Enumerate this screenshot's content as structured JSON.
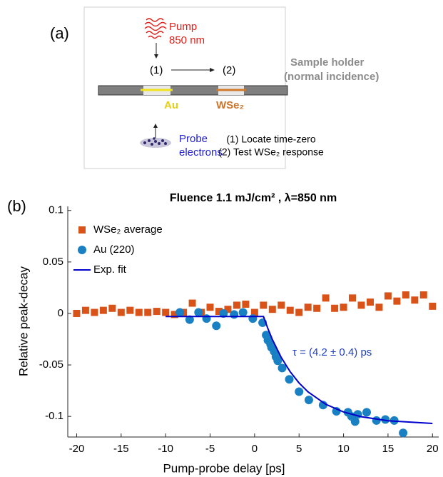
{
  "diagram": {
    "panel_label": "(a)",
    "pump": "Pump",
    "pump_wavelength": "850 nm",
    "step1": "(1)",
    "step2": "(2)",
    "holder": "Sample holder",
    "holder_note": "(normal incidence)",
    "au": "Au",
    "wse2": "WSe₂",
    "probe": "Probe",
    "probe_2": "electrons",
    "note1": "(1) Locate time-zero",
    "note2": "(2) Test WSe₂ response"
  },
  "chart_data": {
    "type": "scatter",
    "panel_label": "(b)",
    "title": "Fluence 1.1 mJ/cm² , λ=850 nm",
    "x_label": "Pump-probe delay [ps]",
    "y_label": "Relative peak-decay",
    "annotation": "τ = (4.2 ± 0.4) ps",
    "xlim": [
      -21,
      20.7
    ],
    "ylim": [
      -0.12,
      0.104
    ],
    "xticks": [
      -20,
      -15,
      -10,
      -5,
      0,
      5,
      10,
      15,
      20
    ],
    "yticks": [
      0.1,
      0.05,
      0,
      -0.05,
      -0.1
    ],
    "legend": "upper left",
    "series": [
      {
        "name": "WSe₂ average",
        "color": "#d95319",
        "marker": "square",
        "x": [
          -20,
          -19,
          -18,
          -17,
          -16,
          -15,
          -14,
          -13,
          -12,
          -11,
          -10,
          -9,
          -8,
          -7,
          -6,
          -5,
          -4,
          -3,
          -2,
          -1,
          0,
          1,
          2,
          3,
          4,
          5,
          6,
          7,
          8,
          9,
          10,
          11,
          12,
          13,
          14,
          15,
          16,
          17,
          18,
          19,
          20
        ],
        "values": [
          0,
          0.003,
          0.001,
          0.003,
          0.005,
          0.001,
          0.003,
          0.001,
          0.001,
          0.002,
          0.001,
          -0.001,
          0.001,
          0.01,
          0.001,
          0.006,
          0.002,
          0.004,
          0.008,
          0.009,
          0.001,
          0.008,
          0.004,
          0.008,
          0.003,
          0.001,
          0.006,
          0.005,
          0.015,
          0.005,
          0.006,
          0.015,
          0.008,
          0.011,
          0.006,
          0.017,
          0.012,
          0.018,
          0.013,
          0.018,
          0.007
        ]
      },
      {
        "name": "Au (220)",
        "color": "#1a80c4",
        "marker": "circle",
        "x": [
          -8.4,
          -7.3,
          -6.3,
          -5.4,
          -4.3,
          -3.5,
          -2.3,
          -1.3,
          -0.2,
          0.9,
          1.3,
          1.5,
          1.8,
          1.9,
          2.2,
          2.4,
          2.6,
          3.1,
          3.9,
          5.0,
          6.1,
          7.7,
          9.2,
          10.5,
          10.9,
          11.3,
          11.6,
          12.6,
          13.7,
          14.7,
          15.7,
          16.7
        ],
        "values": [
          0.001,
          -0.006,
          0.001,
          -0.005,
          -0.012,
          0,
          -0.001,
          0.001,
          -0.005,
          -0.009,
          -0.021,
          -0.026,
          -0.03,
          -0.033,
          -0.037,
          -0.042,
          -0.046,
          -0.053,
          -0.064,
          -0.076,
          -0.084,
          -0.089,
          -0.095,
          -0.096,
          -0.1,
          -0.105,
          -0.098,
          -0.096,
          -0.104,
          -0.103,
          -0.104,
          -0.116
        ]
      },
      {
        "name": "Exp. fit",
        "color": "#0000cd",
        "marker": "line",
        "x": [
          -10,
          0,
          1,
          1.5,
          2,
          3,
          4,
          5,
          6,
          8,
          10,
          12,
          15,
          20
        ],
        "values": [
          -0.003,
          -0.003,
          -0.003,
          -0.0148,
          -0.0253,
          -0.0428,
          -0.0566,
          -0.0675,
          -0.0761,
          -0.0882,
          -0.0957,
          -0.1003,
          -0.1042,
          -0.1068
        ]
      }
    ]
  }
}
